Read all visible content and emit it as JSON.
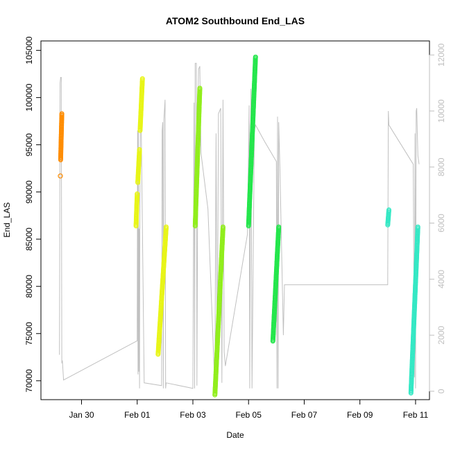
{
  "chart_data": {
    "type": "scatter",
    "title": "ATOM2 Southbound End_LAS",
    "xlabel": "Date",
    "ylabel": "End_LAS",
    "x_ticks": [
      "Jan 30",
      "Feb 01",
      "Feb 03",
      "Feb 05",
      "Feb 07",
      "Feb 09",
      "Feb 11"
    ],
    "xlim": [
      "2022-01-28T13:00",
      "2022-02-11T12:00"
    ],
    "ylim": [
      68000,
      106000
    ],
    "y_ticks": [
      70000,
      75000,
      80000,
      85000,
      90000,
      95000,
      100000,
      105000
    ],
    "y2_ticks": [
      0,
      2000,
      4000,
      6000,
      8000,
      10000,
      12000
    ],
    "y2lim": [
      -300,
      12500
    ],
    "grid": false,
    "legend": "none",
    "colors": {
      "axis": "#000000",
      "secondary_axis": "#bebebe",
      "secondary_line": "#c0c0c0"
    },
    "series": [
      {
        "color": "#ff8c00",
        "segments": [
          {
            "start": "2022-01-29T05:40",
            "end": "2022-01-29T05:50",
            "y_start": 91700,
            "y_end": 91700
          },
          {
            "start": "2022-01-29T06:00",
            "end": "2022-01-29T07:00",
            "y_start": 93400,
            "y_end": 98300
          }
        ]
      },
      {
        "color": "#e8f516",
        "segments": [
          {
            "start": "2022-01-31T23:00",
            "end": "2022-02-01T00:00",
            "y_start": 86400,
            "y_end": 89800
          },
          {
            "start": "2022-02-01T00:30",
            "end": "2022-02-01T02:00",
            "y_start": 91000,
            "y_end": 94500
          },
          {
            "start": "2022-02-01T02:30",
            "end": "2022-02-01T04:30",
            "y_start": 96500,
            "y_end": 102000
          },
          {
            "start": "2022-02-01T18:00",
            "end": "2022-02-02T01:00",
            "y_start": 72800,
            "y_end": 86300
          }
        ]
      },
      {
        "color": "#90ee1a",
        "segments": [
          {
            "start": "2022-02-03T02:00",
            "end": "2022-02-03T06:00",
            "y_start": 86400,
            "y_end": 101000
          },
          {
            "start": "2022-02-03T19:00",
            "end": "2022-02-04T02:00",
            "y_start": 68500,
            "y_end": 86300
          }
        ]
      },
      {
        "color": "#22e64a",
        "segments": [
          {
            "start": "2022-02-05T00:00",
            "end": "2022-02-05T06:00",
            "y_start": 86400,
            "y_end": 104300
          },
          {
            "start": "2022-02-05T21:00",
            "end": "2022-02-06T02:00",
            "y_start": 74200,
            "y_end": 86300
          }
        ]
      },
      {
        "color": "#33e8c4",
        "segments": [
          {
            "start": "2022-02-10T00:00",
            "end": "2022-02-10T01:00",
            "y_start": 86500,
            "y_end": 88100
          },
          {
            "start": "2022-02-10T20:00",
            "end": "2022-02-11T02:00",
            "y_start": 68700,
            "y_end": 86300
          }
        ]
      }
    ],
    "secondary_line": [
      [
        "2022-01-29T05:00",
        1300
      ],
      [
        "2022-01-29T05:30",
        11000
      ],
      [
        "2022-01-29T06:00",
        11200
      ],
      [
        "2022-01-29T06:30",
        11200
      ],
      [
        "2022-01-29T07:00",
        1000
      ],
      [
        "2022-01-29T07:30",
        1100
      ],
      [
        "2022-01-29T08:30",
        400
      ],
      [
        "2022-02-01T00:00",
        1800
      ],
      [
        "2022-02-01T00:20",
        9300
      ],
      [
        "2022-02-01T00:40",
        600
      ],
      [
        "2022-02-01T01:00",
        9600
      ],
      [
        "2022-02-01T01:20",
        700
      ],
      [
        "2022-02-01T01:40",
        5800
      ],
      [
        "2022-02-01T02:00",
        100
      ],
      [
        "2022-02-01T02:20",
        6200
      ],
      [
        "2022-02-01T02:40",
        9600
      ],
      [
        "2022-02-01T03:30",
        9400
      ],
      [
        "2022-02-01T06:00",
        300
      ],
      [
        "2022-02-01T21:00",
        200
      ],
      [
        "2022-02-01T21:30",
        9300
      ],
      [
        "2022-02-01T22:00",
        9600
      ],
      [
        "2022-02-01T22:30",
        100
      ],
      [
        "2022-02-01T23:00",
        9700
      ],
      [
        "2022-02-02T00:00",
        10400
      ],
      [
        "2022-02-02T00:30",
        100
      ],
      [
        "2022-02-02T01:00",
        300
      ],
      [
        "2022-02-03T00:00",
        100
      ],
      [
        "2022-02-03T01:00",
        10300
      ],
      [
        "2022-02-03T01:30",
        100
      ],
      [
        "2022-02-03T02:00",
        11700
      ],
      [
        "2022-02-03T03:00",
        11700
      ],
      [
        "2022-02-03T03:30",
        200
      ],
      [
        "2022-02-03T04:30",
        10500
      ],
      [
        "2022-02-03T05:00",
        11500
      ],
      [
        "2022-02-03T06:00",
        11600
      ],
      [
        "2022-02-03T07:00",
        8500
      ],
      [
        "2022-02-03T13:00",
        6500
      ],
      [
        "2022-02-03T19:00",
        100
      ],
      [
        "2022-02-03T20:00",
        9200
      ],
      [
        "2022-02-03T21:00",
        100
      ],
      [
        "2022-02-03T22:00",
        9900
      ],
      [
        "2022-02-04T00:00",
        10100
      ],
      [
        "2022-02-04T01:00",
        300
      ],
      [
        "2022-02-04T02:00",
        10400
      ],
      [
        "2022-02-04T03:00",
        1400
      ],
      [
        "2022-02-04T04:00",
        900
      ],
      [
        "2022-02-04T23:00",
        5600
      ],
      [
        "2022-02-05T00:30",
        10200
      ],
      [
        "2022-02-05T01:00",
        100
      ],
      [
        "2022-02-05T02:00",
        10800
      ],
      [
        "2022-02-05T03:00",
        100
      ],
      [
        "2022-02-05T05:00",
        9300
      ],
      [
        "2022-02-05T06:00",
        9500
      ],
      [
        "2022-02-05T14:00",
        8900
      ],
      [
        "2022-02-06T00:00",
        8200
      ],
      [
        "2022-02-06T00:30",
        100
      ],
      [
        "2022-02-06T01:00",
        9800
      ],
      [
        "2022-02-06T01:30",
        100
      ],
      [
        "2022-02-06T02:00",
        9600
      ],
      [
        "2022-02-06T03:00",
        8000
      ],
      [
        "2022-02-06T06:00",
        2000
      ],
      [
        "2022-02-06T07:00",
        3800
      ],
      [
        "2022-02-09T05:00",
        3800
      ],
      [
        "2022-02-10T00:00",
        3800
      ],
      [
        "2022-02-10T00:30",
        10000
      ],
      [
        "2022-02-10T01:00",
        9500
      ],
      [
        "2022-02-10T22:00",
        8100
      ],
      [
        "2022-02-10T23:00",
        500
      ],
      [
        "2022-02-10T23:30",
        9200
      ],
      [
        "2022-02-11T00:00",
        100
      ],
      [
        "2022-02-11T00:30",
        10000
      ],
      [
        "2022-02-11T01:00",
        10100
      ],
      [
        "2022-02-11T02:00",
        8400
      ],
      [
        "2022-02-11T03:00",
        8100
      ]
    ]
  }
}
